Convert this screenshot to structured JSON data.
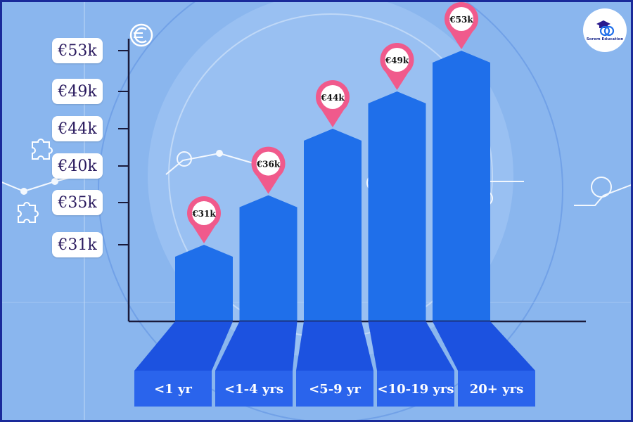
{
  "brand": {
    "name": "Sorem Education"
  },
  "chart_data": {
    "type": "bar",
    "categories": [
      "<1 yr",
      "<1-4 yrs",
      "<5-9 yr",
      "<10-19 yrs",
      "20+ yrs"
    ],
    "values": [
      31,
      36,
      44,
      49,
      53
    ],
    "value_labels": [
      "€31k",
      "€36k",
      "€44k",
      "€49k",
      "€53k"
    ],
    "yticks": [
      {
        "value": 31,
        "label": "€31k"
      },
      {
        "value": 35,
        "label": "€35k"
      },
      {
        "value": 40,
        "label": "€40k"
      },
      {
        "value": 44,
        "label": "€44k"
      },
      {
        "value": 49,
        "label": "€49k"
      },
      {
        "value": 53,
        "label": "€53k"
      }
    ],
    "grid": false,
    "legend": "none"
  },
  "colors": {
    "background": "#8cb8f0",
    "bar": "#1f6fea",
    "base": "#1c52e0",
    "pin": "#f05a8c",
    "axis": "#1a1a3a",
    "pill_text": "#2a1a5e"
  }
}
